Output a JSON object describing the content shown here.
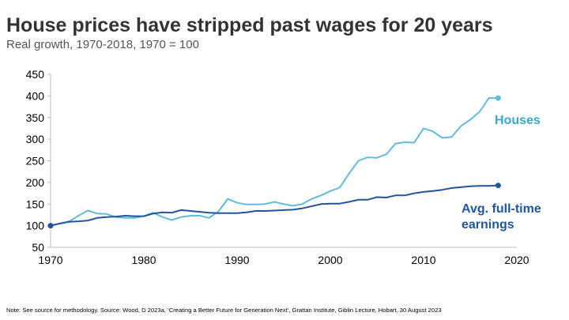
{
  "chart_data": {
    "type": "line",
    "title": "House prices have stripped past wages for 20 years",
    "subtitle": "Real growth, 1970-2018, 1970 = 100",
    "xlabel": "",
    "ylabel": "",
    "xlim": [
      1970,
      2020
    ],
    "ylim": [
      50,
      450
    ],
    "xticks": [
      "1970",
      "1980",
      "1990",
      "2000",
      "2010",
      "2020"
    ],
    "yticks": [
      "50",
      "100",
      "150",
      "200",
      "250",
      "300",
      "350",
      "400",
      "450"
    ],
    "grid": false,
    "x": [
      1970,
      1971,
      1972,
      1973,
      1974,
      1975,
      1976,
      1977,
      1978,
      1979,
      1980,
      1981,
      1982,
      1983,
      1984,
      1985,
      1986,
      1987,
      1988,
      1989,
      1990,
      1991,
      1992,
      1993,
      1994,
      1995,
      1996,
      1997,
      1998,
      1999,
      2000,
      2001,
      2002,
      2003,
      2004,
      2005,
      2006,
      2007,
      2008,
      2009,
      2010,
      2011,
      2012,
      2013,
      2014,
      2015,
      2016,
      2017,
      2018
    ],
    "series": [
      {
        "name": "Houses",
        "color": "#62bbdd",
        "values": [
          100,
          105,
          110,
          123,
          135,
          128,
          127,
          120,
          118,
          118,
          122,
          130,
          120,
          113,
          120,
          123,
          123,
          118,
          133,
          162,
          153,
          149,
          149,
          150,
          155,
          150,
          146,
          150,
          162,
          170,
          180,
          188,
          220,
          250,
          258,
          257,
          265,
          290,
          293,
          292,
          325,
          318,
          303,
          305,
          330,
          345,
          363,
          395,
          395
        ]
      },
      {
        "name": "Avg. full-time earnings",
        "color": "#2155a0",
        "values": [
          100,
          105,
          109,
          110,
          112,
          118,
          120,
          121,
          123,
          122,
          122,
          128,
          131,
          130,
          136,
          134,
          132,
          130,
          129,
          129,
          129,
          131,
          134,
          134,
          135,
          136,
          137,
          140,
          145,
          150,
          151,
          151,
          155,
          160,
          160,
          166,
          165,
          170,
          170,
          175,
          178,
          180,
          183,
          187,
          189,
          191,
          192,
          192,
          193
        ]
      }
    ],
    "labels": {
      "houses": "Houses",
      "earnings_line1": "Avg. full-time",
      "earnings_line2": "earnings"
    },
    "legend": "inline labels at right"
  },
  "note": "Note: See source for methodology. Source: Wood, D 2023a, ‘Creating a Better Future for Generation Next’, Grattan Institute, Giblin Lecture, Hobart, 30 August 2023"
}
